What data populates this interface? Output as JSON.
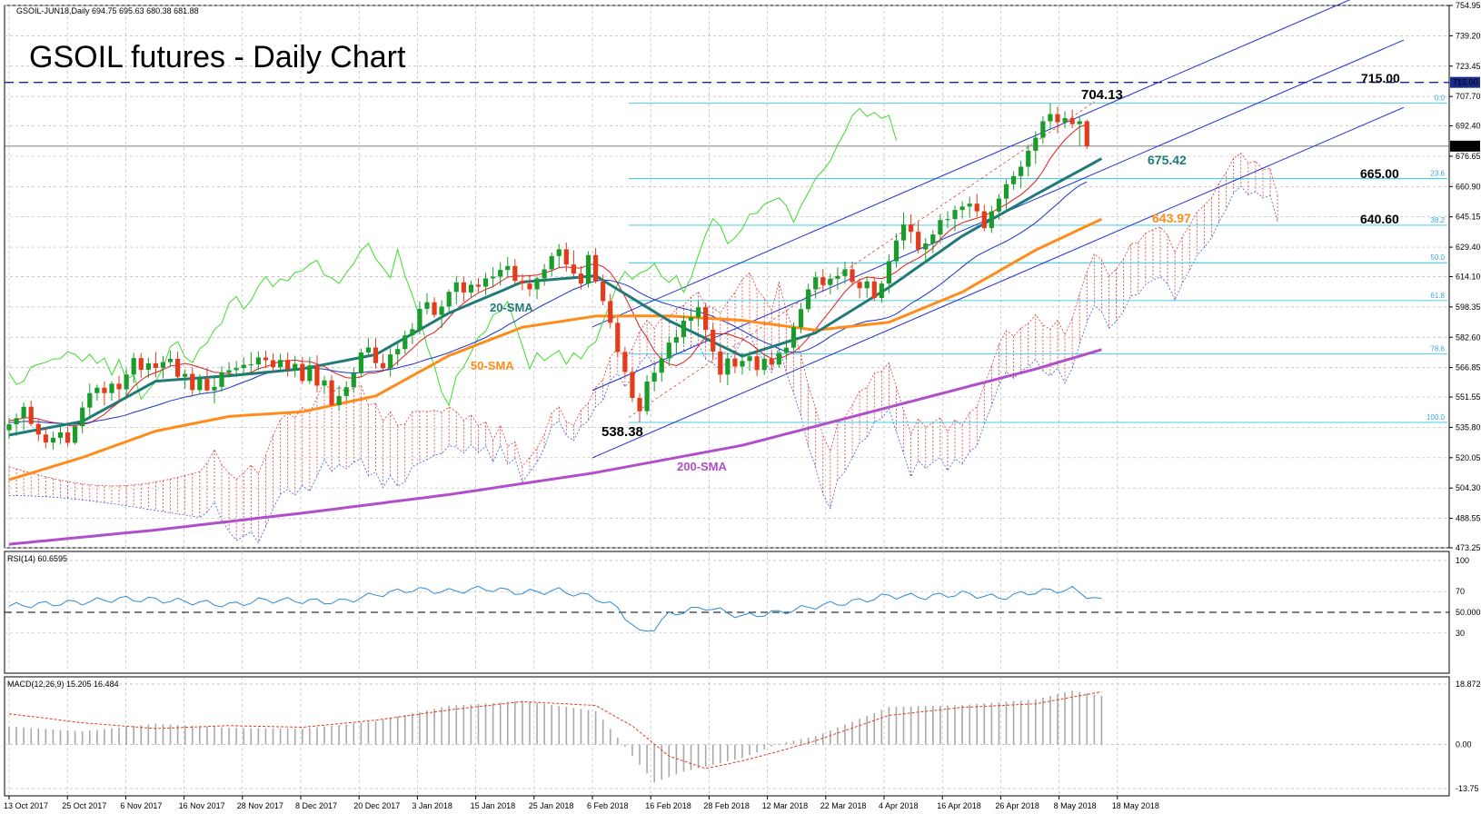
{
  "chart_data": {
    "type": "candlestick",
    "symbol_header": "GSOIL-JUN18,Daily  694.75 695.63 680.38 681.88",
    "title": "GSOIL futures - Daily Chart",
    "price_axis": {
      "ylim": [
        473.25,
        754.95
      ],
      "ticks": [
        "754.95",
        "739.20",
        "723.45",
        "707.70",
        "692.40",
        "676.65",
        "660.90",
        "645.15",
        "629.40",
        "614.10",
        "598.35",
        "582.60",
        "566.85",
        "551.55",
        "535.80",
        "520.05",
        "504.30",
        "488.55",
        "473.25"
      ],
      "current_price": "681.88",
      "marked_level": "715.00"
    },
    "x_axis": {
      "ticks": [
        "13 Oct 2017",
        "25 Oct 2017",
        "6 Nov 2017",
        "16 Nov 2017",
        "28 Nov 2017",
        "8 Dec 2017",
        "20 Dec 2017",
        "3 Jan 2018",
        "15 Jan 2018",
        "25 Jan 2018",
        "6 Feb 2018",
        "16 Feb 2018",
        "28 Feb 2018",
        "12 Mar 2018",
        "22 Mar 2018",
        "4 Apr 2018",
        "16 Apr 2018",
        "26 Apr 2018",
        "8 May 2018",
        "18 May 2018"
      ]
    },
    "annotations": {
      "high": "704.13",
      "low": "538.38",
      "sma20_value": "675.42",
      "sma50_value": "643.97",
      "level_715": "715.00",
      "level_665": "665.00",
      "level_640": "640.60",
      "sma20_label": "20-SMA",
      "sma50_label": "50-SMA",
      "sma200_label": "200-SMA"
    },
    "fibonacci": {
      "levels": [
        {
          "label": "0.0",
          "price": 704.13
        },
        {
          "label": "23.6",
          "price": 665.0
        },
        {
          "label": "38.2",
          "price": 640.8
        },
        {
          "label": "50.0",
          "price": 621.3
        },
        {
          "label": "61.8",
          "price": 601.7
        },
        {
          "label": "78.6",
          "price": 573.9
        },
        {
          "label": "100.0",
          "price": 538.38
        }
      ]
    },
    "candles": [
      [
        534.3,
        540.7,
        529.7,
        537.4
      ],
      [
        537.4,
        543.0,
        531.4,
        540.6
      ],
      [
        540.6,
        548.7,
        534.4,
        546.5
      ],
      [
        546.5,
        549.7,
        536.4,
        537.6
      ],
      [
        537.6,
        540.3,
        528.6,
        532.1
      ],
      [
        532.1,
        535.8,
        524.9,
        527.9
      ],
      [
        527.9,
        533.6,
        524.3,
        530.4
      ],
      [
        530.4,
        537.1,
        527.2,
        533.2
      ],
      [
        533.2,
        536.1,
        525.8,
        527.8
      ],
      [
        527.8,
        538.1,
        526.8,
        536.4
      ],
      [
        536.4,
        549.2,
        532.7,
        546.1
      ],
      [
        546.1,
        558.5,
        540.8,
        553.6
      ],
      [
        553.6,
        558.0,
        549.7,
        556.4
      ],
      [
        556.4,
        559.7,
        547.2,
        553.6
      ],
      [
        553.6,
        559.9,
        549.7,
        558.5
      ],
      [
        558.5,
        562.7,
        549.5,
        555.6
      ],
      [
        555.6,
        566.4,
        550.6,
        563.3
      ],
      [
        563.3,
        574.5,
        558.9,
        571.8
      ],
      [
        571.8,
        574.4,
        561.6,
        565.7
      ],
      [
        565.7,
        572.0,
        561.6,
        569.1
      ],
      [
        569.1,
        575.0,
        561.8,
        566.7
      ],
      [
        566.7,
        572.9,
        561.2,
        569.7
      ],
      [
        569.7,
        575.7,
        567.3,
        571.4
      ],
      [
        571.4,
        575.1,
        561.3,
        562.1
      ],
      [
        562.1,
        565.9,
        555.9,
        563.6
      ],
      [
        563.6,
        567.0,
        552.0,
        555.2
      ],
      [
        555.2,
        563.3,
        552.7,
        561.0
      ],
      [
        561.0,
        566.6,
        554.3,
        555.0
      ],
      [
        555.0,
        561.7,
        548.3,
        556.8
      ],
      [
        556.8,
        567.5,
        554.3,
        564.2
      ],
      [
        564.2,
        569.7,
        561.6,
        565.5
      ],
      [
        565.5,
        570.4,
        561.9,
        566.6
      ],
      [
        566.6,
        572.2,
        562.5,
        568.3
      ],
      [
        568.3,
        574.9,
        564.0,
        568.5
      ],
      [
        568.5,
        575.3,
        565.6,
        572.1
      ],
      [
        572.1,
        575.7,
        566.6,
        570.7
      ],
      [
        570.7,
        574.2,
        564.3,
        567.1
      ],
      [
        567.1,
        574.1,
        565.8,
        570.8
      ],
      [
        570.8,
        574.6,
        562.3,
        566.0
      ],
      [
        566.0,
        573.0,
        561.8,
        568.8
      ],
      [
        568.8,
        572.3,
        558.4,
        559.9
      ],
      [
        559.9,
        572.4,
        558.4,
        568.0
      ],
      [
        568.0,
        573.2,
        554.0,
        557.5
      ],
      [
        557.5,
        562.5,
        553.1,
        560.2
      ],
      [
        560.2,
        562.9,
        546.8,
        547.4
      ],
      [
        547.4,
        557.5,
        544.3,
        552.1
      ],
      [
        552.1,
        559.8,
        549.8,
        556.7
      ],
      [
        556.7,
        566.8,
        554.2,
        563.9
      ],
      [
        563.9,
        576.8,
        561.7,
        574.7
      ],
      [
        574.7,
        582.4,
        572.4,
        577.3
      ],
      [
        577.3,
        582.1,
        566.3,
        569.2
      ],
      [
        569.2,
        574.1,
        564.8,
        566.5
      ],
      [
        566.5,
        576.8,
        562.2,
        573.7
      ],
      [
        573.7,
        580.9,
        567.9,
        576.5
      ],
      [
        576.5,
        586.1,
        574.0,
        583.6
      ],
      [
        583.6,
        590.1,
        579.1,
        586.8
      ],
      [
        586.8,
        601.2,
        584.1,
        597.4
      ],
      [
        597.4,
        605.5,
        594.6,
        600.8
      ],
      [
        600.8,
        603.4,
        592.8,
        594.2
      ],
      [
        594.2,
        601.9,
        587.3,
        598.6
      ],
      [
        598.6,
        607.4,
        595.6,
        606.2
      ],
      [
        606.2,
        614.5,
        599.8,
        611.1
      ],
      [
        611.1,
        614.0,
        601.1,
        605.9
      ],
      [
        605.9,
        612.1,
        603.2,
        609.9
      ],
      [
        609.9,
        613.4,
        606.1,
        608.9
      ],
      [
        608.9,
        616.0,
        604.5,
        613.2
      ],
      [
        613.2,
        619.0,
        608.8,
        614.1
      ],
      [
        614.1,
        621.6,
        609.4,
        617.6
      ],
      [
        617.6,
        624.3,
        613.7,
        619.6
      ],
      [
        619.6,
        623.2,
        610.0,
        611.9
      ],
      [
        611.9,
        615.4,
        607.0,
        610.5
      ],
      [
        610.5,
        615.2,
        603.8,
        607.5
      ],
      [
        607.5,
        614.2,
        602.5,
        613.2
      ],
      [
        613.2,
        620.7,
        609.4,
        617.9
      ],
      [
        617.9,
        626.6,
        614.4,
        624.8
      ],
      [
        624.8,
        631.0,
        618.5,
        628.3
      ],
      [
        628.3,
        631.8,
        616.6,
        620.4
      ],
      [
        620.4,
        627.8,
        613.8,
        615.7
      ],
      [
        615.7,
        619.6,
        607.5,
        610.5
      ],
      [
        610.5,
        627.2,
        608.4,
        625.3
      ],
      [
        625.3,
        628.9,
        610.6,
        611.5
      ],
      [
        611.5,
        615.2,
        599.2,
        601.4
      ],
      [
        601.4,
        605.2,
        587.3,
        590.1
      ],
      [
        590.1,
        592.9,
        572.3,
        575.0
      ],
      [
        575.0,
        577.6,
        562.0,
        564.6
      ],
      [
        564.6,
        566.5,
        549.0,
        551.1
      ],
      [
        551.1,
        553.6,
        538.4,
        544.2
      ],
      [
        544.2,
        562.9,
        542.3,
        559.6
      ],
      [
        559.6,
        567.6,
        554.4,
        564.2
      ],
      [
        564.2,
        573.8,
        559.4,
        571.6
      ],
      [
        571.6,
        583.2,
        567.7,
        579.8
      ],
      [
        579.8,
        586.7,
        573.8,
        582.7
      ],
      [
        582.7,
        594.1,
        579.0,
        591.2
      ],
      [
        591.2,
        596.7,
        586.4,
        593.0
      ],
      [
        593.0,
        601.4,
        588.2,
        598.2
      ],
      [
        598.2,
        600.5,
        580.6,
        586.5
      ],
      [
        586.5,
        589.6,
        571.4,
        575.2
      ],
      [
        575.2,
        578.2,
        559.1,
        563.2
      ],
      [
        563.2,
        574.6,
        557.7,
        571.6
      ],
      [
        571.6,
        575.8,
        563.9,
        567.4
      ],
      [
        567.4,
        574.6,
        563.2,
        570.3
      ],
      [
        570.3,
        575.4,
        565.1,
        572.7
      ],
      [
        572.7,
        576.6,
        562.4,
        565.6
      ],
      [
        565.6,
        573.8,
        563.0,
        571.5
      ],
      [
        571.5,
        575.1,
        565.5,
        568.4
      ],
      [
        568.4,
        576.4,
        566.7,
        574.5
      ],
      [
        574.5,
        579.8,
        570.8,
        577.2
      ],
      [
        577.2,
        590.2,
        575.7,
        587.8
      ],
      [
        587.8,
        600.4,
        584.6,
        597.2
      ],
      [
        597.2,
        610.4,
        595.6,
        607.5
      ],
      [
        607.5,
        616.7,
        602.6,
        613.8
      ],
      [
        613.8,
        618.0,
        606.1,
        609.8
      ],
      [
        609.8,
        615.6,
        604.9,
        613.0
      ],
      [
        613.0,
        619.0,
        607.3,
        614.4
      ],
      [
        614.4,
        621.8,
        610.4,
        617.9
      ],
      [
        617.9,
        621.9,
        609.4,
        611.3
      ],
      [
        611.3,
        613.2,
        602.8,
        608.1
      ],
      [
        608.1,
        614.1,
        603.1,
        611.6
      ],
      [
        611.6,
        614.0,
        601.4,
        603.0
      ],
      [
        603.0,
        612.0,
        600.5,
        610.5
      ],
      [
        610.5,
        625.7,
        605.5,
        622.1
      ],
      [
        622.1,
        636.4,
        618.8,
        632.9
      ],
      [
        632.9,
        647.5,
        628.3,
        641.2
      ],
      [
        641.2,
        646.4,
        631.5,
        637.4
      ],
      [
        637.4,
        642.8,
        626.2,
        628.2
      ],
      [
        628.2,
        634.1,
        621.0,
        631.3
      ],
      [
        631.3,
        638.2,
        626.3,
        636.0
      ],
      [
        636.0,
        646.6,
        631.4,
        643.5
      ],
      [
        643.5,
        648.0,
        639.3,
        644.0
      ],
      [
        644.0,
        651.0,
        637.7,
        648.7
      ],
      [
        648.7,
        653.3,
        644.2,
        650.5
      ],
      [
        650.5,
        655.6,
        644.7,
        652.0
      ],
      [
        652.0,
        657.1,
        645.3,
        648.0
      ],
      [
        648.0,
        651.4,
        637.6,
        639.3
      ],
      [
        639.3,
        650.9,
        636.8,
        647.9
      ],
      [
        647.9,
        657.1,
        643.7,
        654.6
      ],
      [
        654.6,
        664.6,
        649.0,
        662.1
      ],
      [
        662.1,
        668.8,
        659.2,
        666.3
      ],
      [
        666.3,
        674.3,
        660.0,
        671.2
      ],
      [
        671.2,
        682.6,
        666.1,
        679.5
      ],
      [
        679.5,
        689.6,
        672.6,
        686.3
      ],
      [
        686.3,
        697.4,
        683.1,
        694.8
      ],
      [
        694.8,
        704.1,
        690.3,
        698.5
      ],
      [
        698.5,
        702.4,
        688.6,
        694.3
      ],
      [
        694.3,
        700.0,
        691.2,
        696.4
      ],
      [
        696.4,
        700.9,
        691.2,
        693.3
      ],
      [
        693.3,
        697.6,
        681.7,
        694.8
      ],
      [
        694.8,
        695.6,
        680.4,
        681.9
      ]
    ],
    "sma20": [
      [
        0,
        531.8
      ],
      [
        10,
        538.9
      ],
      [
        20,
        559.8
      ],
      [
        30,
        562.6
      ],
      [
        40,
        566.2
      ],
      [
        50,
        573.6
      ],
      [
        60,
        595.2
      ],
      [
        70,
        611.3
      ],
      [
        80,
        614.5
      ],
      [
        90,
        591.2
      ],
      [
        100,
        572.8
      ],
      [
        110,
        584.9
      ],
      [
        120,
        608.5
      ],
      [
        130,
        635.2
      ],
      [
        140,
        656.7
      ],
      [
        149,
        675.42
      ]
    ],
    "sma50": [
      [
        0,
        508.6
      ],
      [
        10,
        520.2
      ],
      [
        20,
        533.9
      ],
      [
        30,
        541.5
      ],
      [
        40,
        543.9
      ],
      [
        50,
        552.1
      ],
      [
        60,
        573.1
      ],
      [
        70,
        587.8
      ],
      [
        80,
        593.6
      ],
      [
        90,
        593.7
      ],
      [
        100,
        591.4
      ],
      [
        110,
        586.3
      ],
      [
        120,
        590.4
      ],
      [
        130,
        606.1
      ],
      [
        140,
        627.9
      ],
      [
        149,
        643.97
      ]
    ],
    "sma200": [
      [
        0,
        475.1
      ],
      [
        20,
        482.5
      ],
      [
        40,
        491.3
      ],
      [
        60,
        500.9
      ],
      [
        80,
        512.3
      ],
      [
        100,
        526.5
      ],
      [
        120,
        546.3
      ],
      [
        140,
        566.1
      ],
      [
        149,
        576.2
      ]
    ],
    "rsi": {
      "label": "RSI(14) 60.6595",
      "ticks": [
        "100",
        "70",
        "50.0000",
        "30"
      ],
      "ylim": [
        0,
        100
      ],
      "values": [
        [
          0,
          56
        ],
        [
          5,
          58
        ],
        [
          10,
          60
        ],
        [
          15,
          63
        ],
        [
          20,
          62
        ],
        [
          25,
          60
        ],
        [
          30,
          57
        ],
        [
          35,
          62
        ],
        [
          40,
          61
        ],
        [
          45,
          60
        ],
        [
          50,
          67
        ],
        [
          55,
          72
        ],
        [
          60,
          70
        ],
        [
          65,
          73
        ],
        [
          70,
          69
        ],
        [
          75,
          71
        ],
        [
          80,
          64
        ],
        [
          83,
          54
        ],
        [
          86,
          30
        ],
        [
          88,
          35
        ],
        [
          90,
          48
        ],
        [
          95,
          55
        ],
        [
          100,
          46
        ],
        [
          105,
          50
        ],
        [
          110,
          56
        ],
        [
          115,
          60
        ],
        [
          120,
          66
        ],
        [
          125,
          65
        ],
        [
          130,
          68
        ],
        [
          135,
          64
        ],
        [
          140,
          70
        ],
        [
          145,
          72
        ],
        [
          149,
          60.66
        ]
      ]
    },
    "macd": {
      "label": "MACD(12,26,9) 15.205 16.484",
      "ticks": [
        "18.872",
        "0.00",
        "-13.75"
      ],
      "ylim": [
        -13.75,
        18.872
      ],
      "histogram": [
        [
          0,
          5.6
        ],
        [
          10,
          4.1
        ],
        [
          20,
          6.5
        ],
        [
          30,
          5.2
        ],
        [
          40,
          4.9
        ],
        [
          50,
          7.3
        ],
        [
          60,
          12.1
        ],
        [
          70,
          13.6
        ],
        [
          80,
          10.5
        ],
        [
          85,
          -3.5
        ],
        [
          88,
          -11.8
        ],
        [
          92,
          -8.5
        ],
        [
          100,
          -4.2
        ],
        [
          105,
          0.3
        ],
        [
          110,
          2.6
        ],
        [
          120,
          11.7
        ],
        [
          130,
          12.3
        ],
        [
          140,
          14.1
        ],
        [
          145,
          16.8
        ],
        [
          149,
          15.205
        ]
      ],
      "signal": [
        [
          0,
          9.6
        ],
        [
          10,
          6.8
        ],
        [
          20,
          5.0
        ],
        [
          30,
          5.9
        ],
        [
          40,
          5.4
        ],
        [
          50,
          7.6
        ],
        [
          60,
          10.8
        ],
        [
          70,
          13.4
        ],
        [
          80,
          12.2
        ],
        [
          85,
          5.8
        ],
        [
          90,
          -3.6
        ],
        [
          95,
          -7.5
        ],
        [
          100,
          -5.1
        ],
        [
          105,
          -2.1
        ],
        [
          110,
          1.2
        ],
        [
          120,
          9.1
        ],
        [
          130,
          11.6
        ],
        [
          140,
          12.7
        ],
        [
          149,
          16.484
        ]
      ]
    }
  }
}
